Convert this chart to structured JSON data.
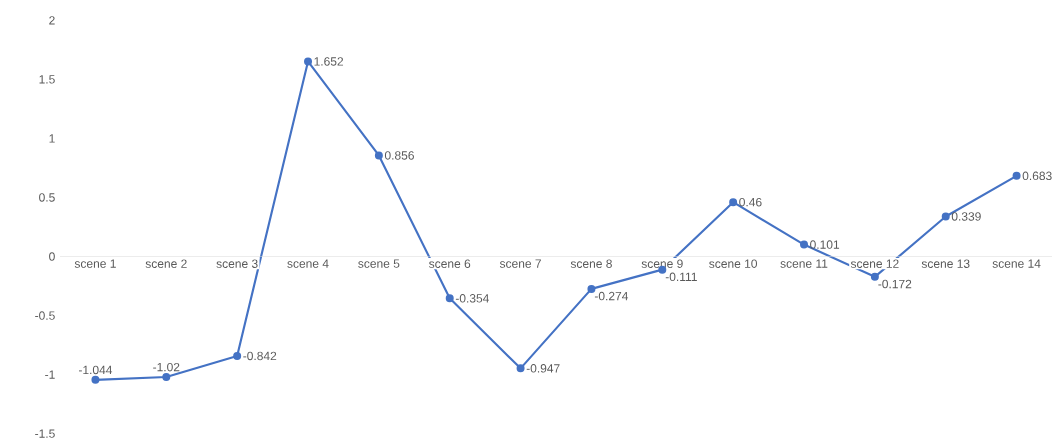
{
  "chart_data": {
    "type": "line",
    "categories": [
      "scene 1",
      "scene 2",
      "scene 3",
      "scene 4",
      "scene 5",
      "scene 6",
      "scene 7",
      "scene 8",
      "scene 9",
      "scene 10",
      "scene 11",
      "scene 12",
      "scene 13",
      "scene 14"
    ],
    "values": [
      -1.044,
      -1.02,
      -0.842,
      1.652,
      0.856,
      -0.354,
      -0.947,
      -0.274,
      -0.111,
      0.46,
      0.101,
      -0.172,
      0.339,
      0.683
    ],
    "color": "#4472c4",
    "marker": "circle",
    "line_style": "solid",
    "data_labels": true,
    "ylim": [
      -1.5,
      2
    ],
    "yticks": [
      -1.5,
      -1,
      -0.5,
      0,
      0.5,
      1,
      1.5,
      2
    ]
  }
}
